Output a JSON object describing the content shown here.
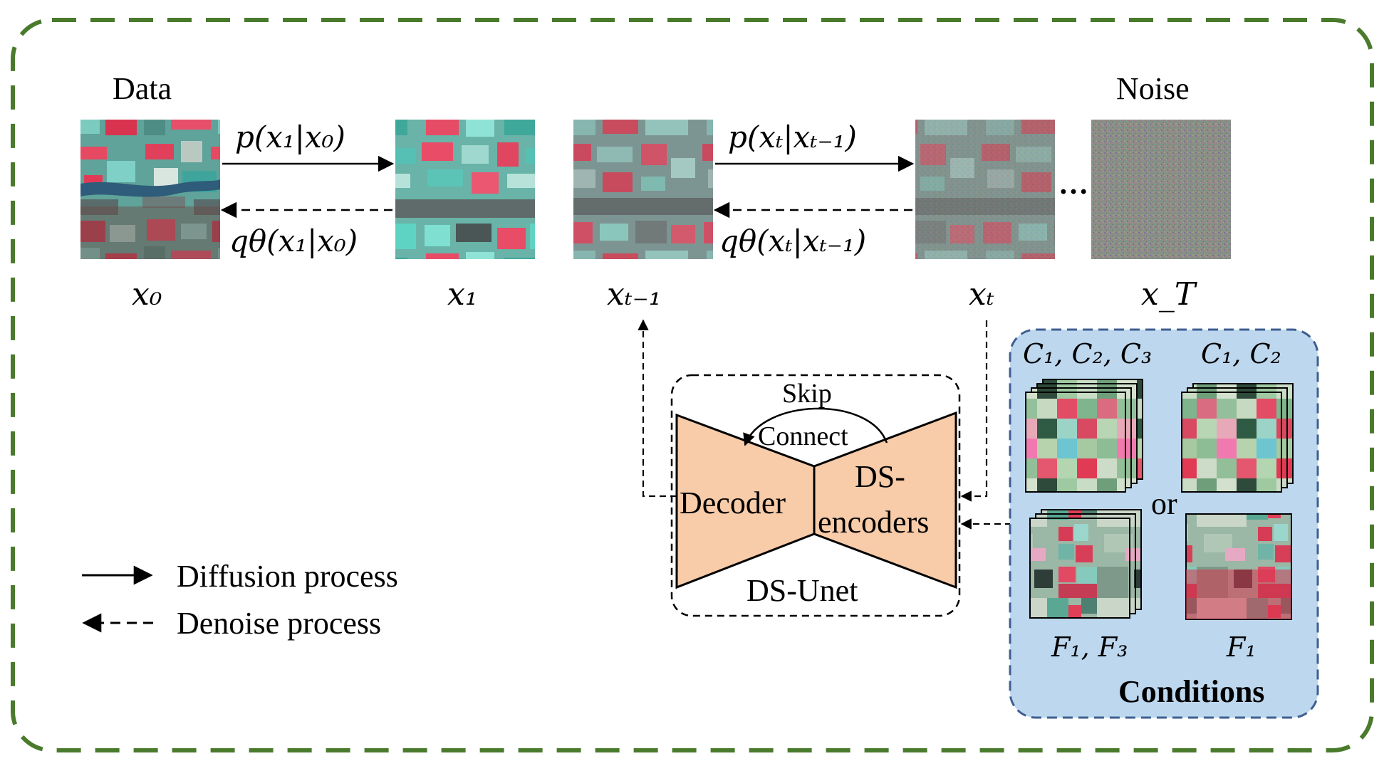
{
  "outer_frame": {
    "stroke_color": "#4a7a2c"
  },
  "header": {
    "data_label": "Data",
    "noise_label": "Noise"
  },
  "states": {
    "x0": "x₀",
    "x1": "x₁",
    "xt_minus_1": "xₜ₋₁",
    "xt": "xₜ",
    "xT": "x_T"
  },
  "transitions": {
    "p_x1_x0": "p(x₁|x₀)",
    "q_x1_x0": "qθ(x₁|x₀)",
    "p_xt_xtm1": "p(xₜ|xₜ₋₁)",
    "q_xt_xtm1": "qθ(xₜ|xₜ₋₁)"
  },
  "ellipsis": "…",
  "network": {
    "name": "DS-Unet",
    "decoder": "Decoder",
    "encoder_line1": "DS-",
    "encoder_line2": "encoders",
    "skip_line1": "Skip",
    "skip_line2": "Connect",
    "block_color": "#f8cba9"
  },
  "conditions": {
    "title": "Conditions",
    "c123": "C₁, C₂, C₃",
    "c12": "C₁, C₂",
    "f13": "F₁, F₃",
    "f1": "F₁",
    "or": "or",
    "panel_color": "#bdd7ee",
    "panel_border": "#3e5f91"
  },
  "legend": {
    "diffusion": "Diffusion process",
    "denoise": "Denoise process"
  }
}
